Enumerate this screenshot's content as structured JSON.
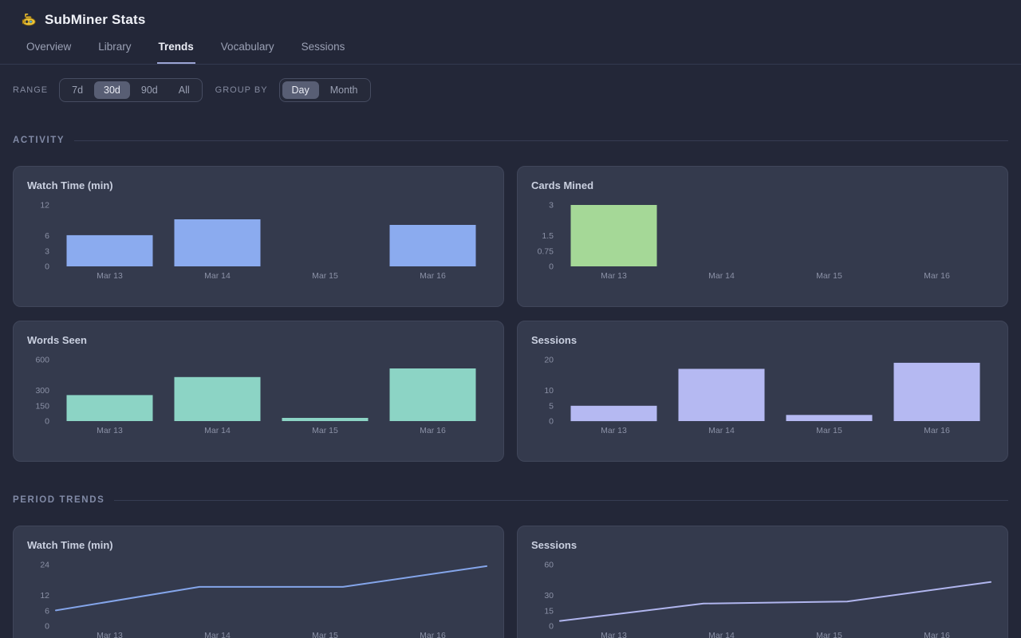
{
  "header": {
    "title": "SubMiner Stats",
    "logo_icon": "submarine-icon"
  },
  "tabs": [
    {
      "label": "Overview",
      "active": false
    },
    {
      "label": "Library",
      "active": false
    },
    {
      "label": "Trends",
      "active": true
    },
    {
      "label": "Vocabulary",
      "active": false
    },
    {
      "label": "Sessions",
      "active": false
    }
  ],
  "controls": {
    "range_label": "Range",
    "range_options": [
      {
        "label": "7d",
        "active": false
      },
      {
        "label": "30d",
        "active": true
      },
      {
        "label": "90d",
        "active": false
      },
      {
        "label": "All",
        "active": false
      }
    ],
    "group_by_label": "Group by",
    "group_by_options": [
      {
        "label": "Day",
        "active": true
      },
      {
        "label": "Month",
        "active": false
      }
    ]
  },
  "sections": [
    {
      "title": "Activity"
    },
    {
      "title": "Period Trends"
    }
  ],
  "colors": {
    "page_bg": "#232738",
    "card_bg": "#343a4d",
    "card_border": "#40465a",
    "accent_underline": "#9ba4d4",
    "bar_blue": "#8babef",
    "bar_green": "#a5d897",
    "bar_teal": "#8cd4c5",
    "bar_lavender": "#b5b9f2",
    "line_blue": "#84a5ea",
    "line_lavender": "#b0b5ee",
    "tick_text": "#8b91a6"
  },
  "chart_data": [
    {
      "type": "bar",
      "section": "Activity",
      "title": "Watch Time (min)",
      "categories": [
        "Mar 13",
        "Mar 14",
        "Mar 15",
        "Mar 16"
      ],
      "values": [
        6.1,
        9.2,
        0,
        8.1
      ],
      "yticks": [
        12,
        6,
        3,
        0
      ],
      "ylim": [
        0,
        12
      ],
      "color": "#8babef",
      "grid": false,
      "legend": "none"
    },
    {
      "type": "bar",
      "section": "Activity",
      "title": "Cards Mined",
      "categories": [
        "Mar 13",
        "Mar 14",
        "Mar 15",
        "Mar 16"
      ],
      "values": [
        3,
        0,
        0,
        0
      ],
      "yticks": [
        3,
        1.5,
        0.75,
        0
      ],
      "ylim": [
        0,
        3
      ],
      "color": "#a5d897",
      "grid": false,
      "legend": "none"
    },
    {
      "type": "bar",
      "section": "Activity",
      "title": "Words Seen",
      "categories": [
        "Mar 13",
        "Mar 14",
        "Mar 15",
        "Mar 16"
      ],
      "values": [
        254,
        430,
        31,
        514
      ],
      "yticks": [
        600,
        300,
        150,
        0
      ],
      "ylim": [
        0,
        600
      ],
      "color": "#8cd4c5",
      "grid": false,
      "legend": "none"
    },
    {
      "type": "bar",
      "section": "Activity",
      "title": "Sessions",
      "categories": [
        "Mar 13",
        "Mar 14",
        "Mar 15",
        "Mar 16"
      ],
      "values": [
        5,
        17,
        2,
        19
      ],
      "yticks": [
        20,
        10,
        5,
        0
      ],
      "ylim": [
        0,
        20
      ],
      "color": "#b5b9f2",
      "grid": false,
      "legend": "none"
    },
    {
      "type": "line",
      "section": "Period Trends",
      "title": "Watch Time (min)",
      "categories": [
        "Mar 13",
        "Mar 14",
        "Mar 15",
        "Mar 16"
      ],
      "values": [
        6.1,
        15.3,
        15.3,
        23.4
      ],
      "yticks": [
        24,
        12,
        6,
        0
      ],
      "ylim": [
        0,
        24
      ],
      "color": "#84a5ea",
      "grid": false,
      "legend": "none"
    },
    {
      "type": "line",
      "section": "Period Trends",
      "title": "Sessions",
      "categories": [
        "Mar 13",
        "Mar 14",
        "Mar 15",
        "Mar 16"
      ],
      "values": [
        5,
        22,
        24,
        43
      ],
      "yticks": [
        60,
        30,
        15,
        0
      ],
      "ylim": [
        0,
        60
      ],
      "color": "#b0b5ee",
      "grid": false,
      "legend": "none"
    }
  ]
}
